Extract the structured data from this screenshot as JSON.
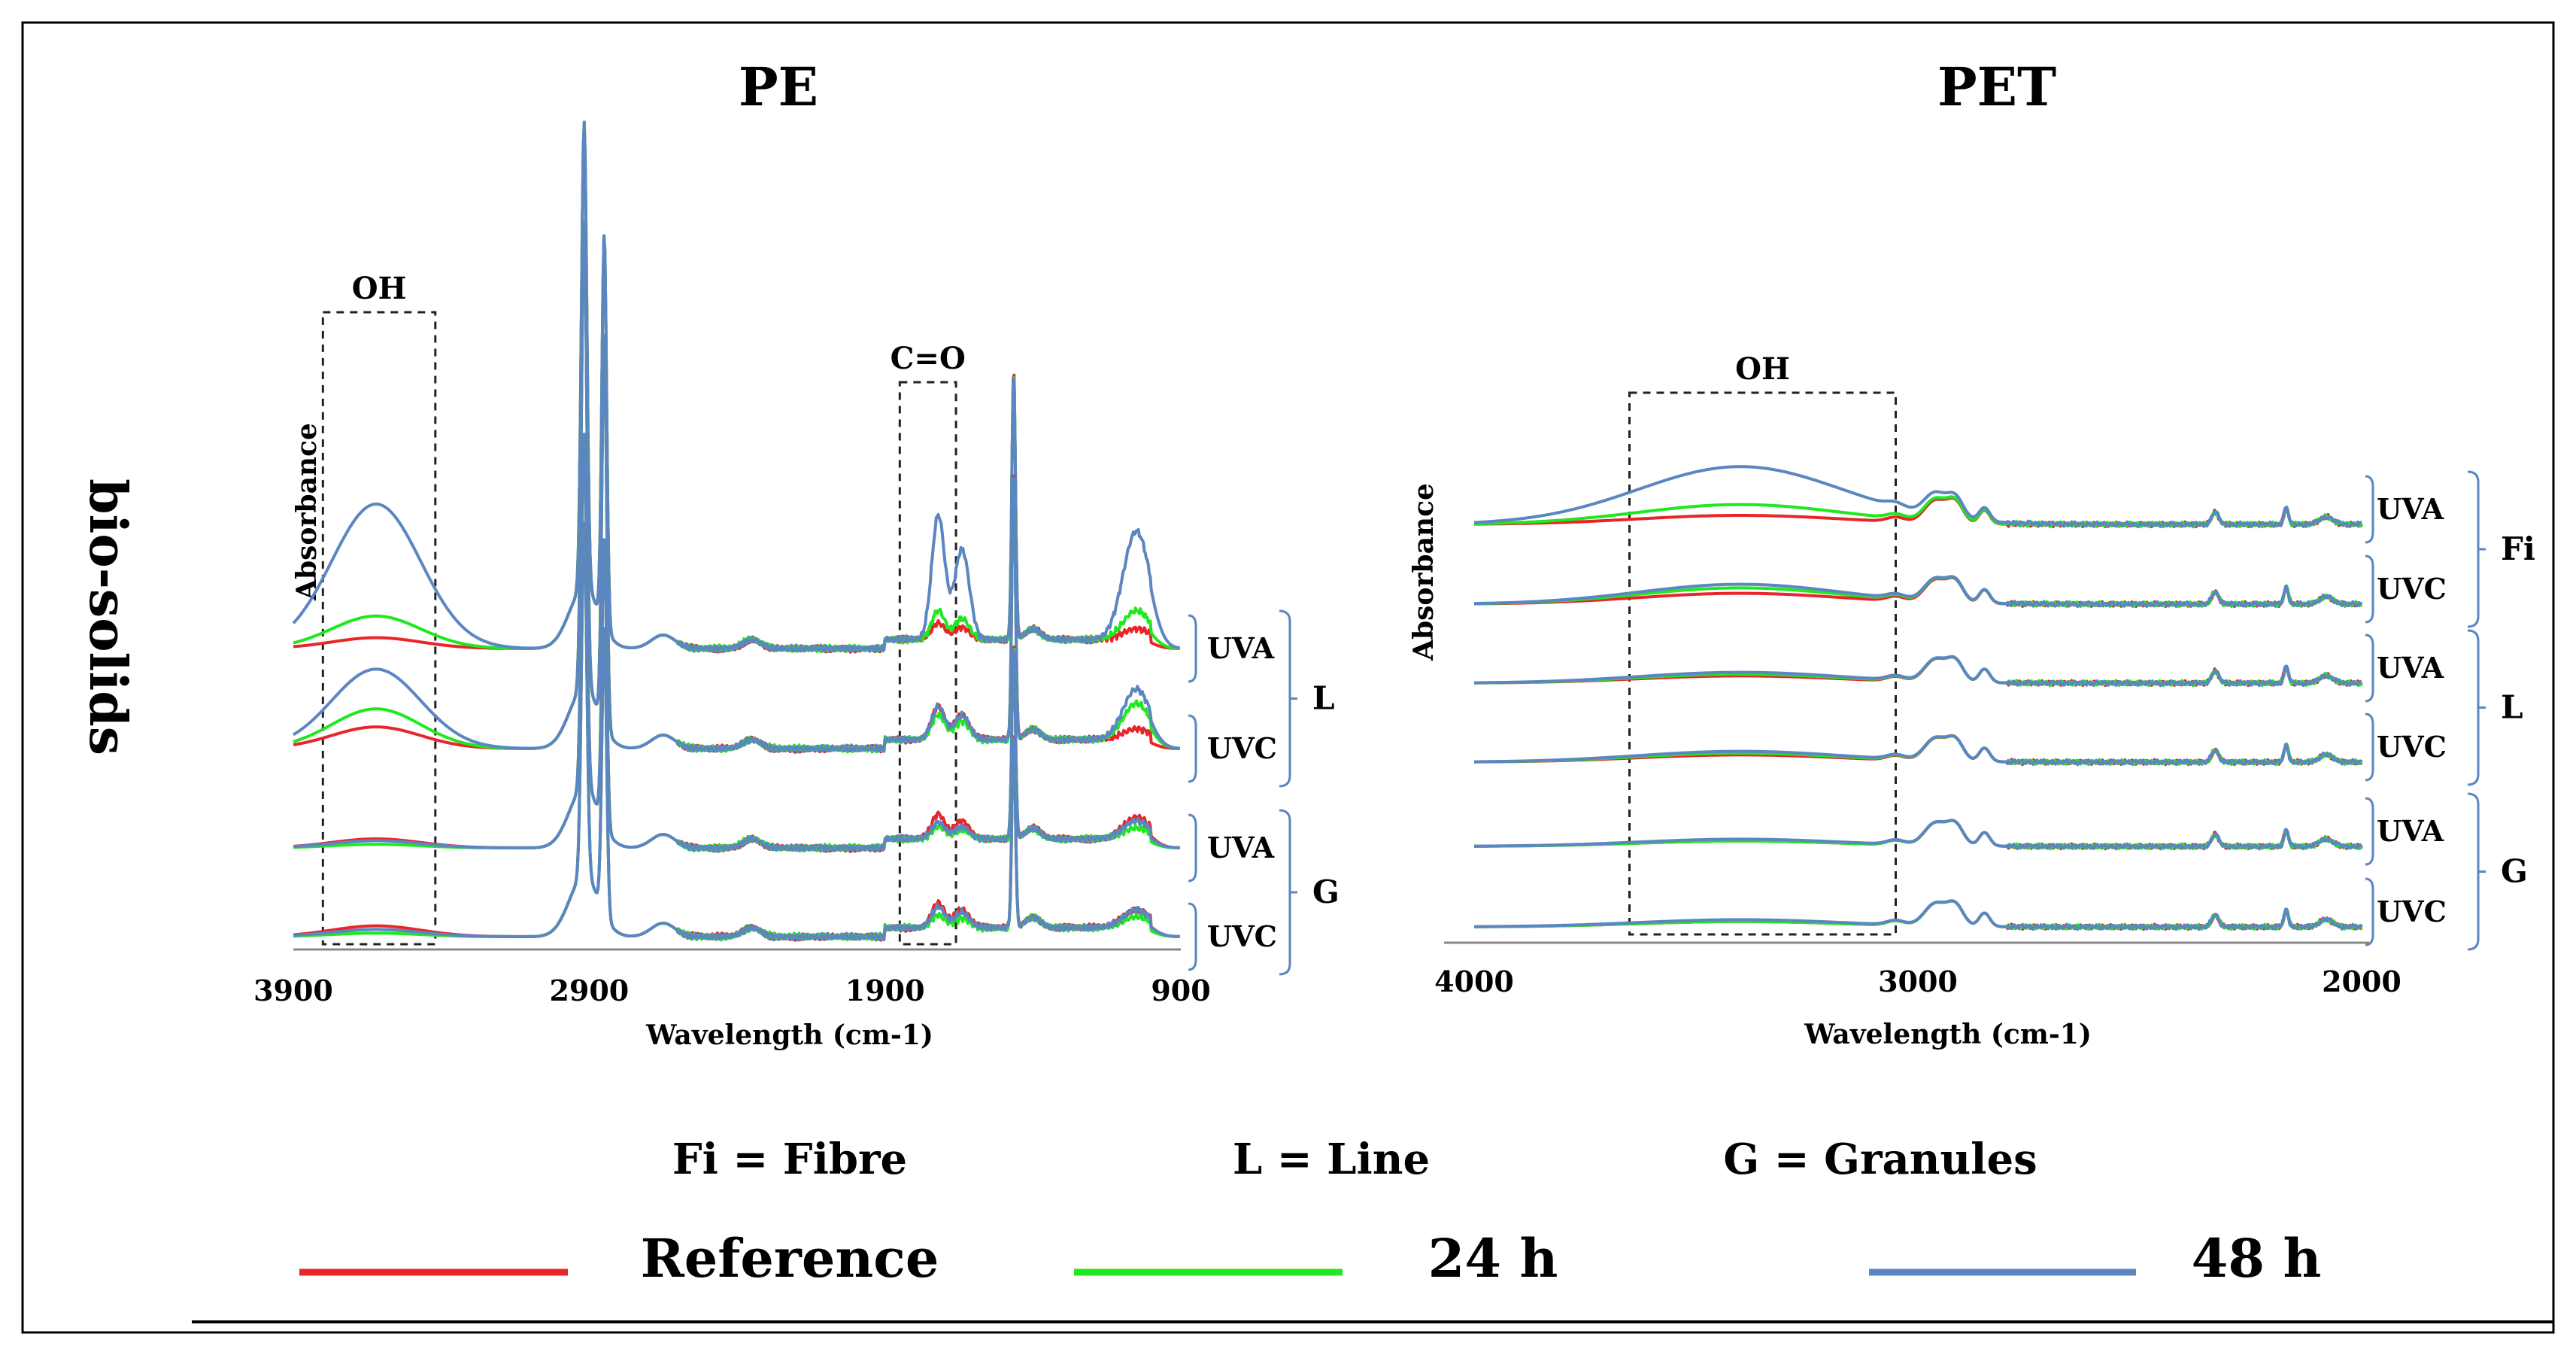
{
  "side_label": "bio-solids",
  "colors": {
    "reference": "#e8262a",
    "h24": "#1fe81f",
    "h48": "#5b86c2",
    "axis": "#888888",
    "bracket": "#5b86c2"
  },
  "legend_text": {
    "fi": "Fi = Fibre",
    "l": "L = Line",
    "g": "G = Granules",
    "reference": "Reference",
    "h24": "24 h",
    "h48": "48 h"
  },
  "chart_data": [
    {
      "type": "line",
      "title": "PE",
      "xlabel": "Wavelength (cm-1)",
      "ylabel": "Absorbance",
      "xlim": [
        3900,
        900
      ],
      "xticks": [
        3900,
        2900,
        1900,
        900
      ],
      "tick_labels": [
        "3900",
        "2900",
        "1900",
        "900"
      ],
      "annotations": [
        {
          "label": "OH",
          "x_range": [
            3800,
            3420
          ]
        },
        {
          "label": "C=O",
          "x_range": [
            1850,
            1660
          ]
        }
      ],
      "tracks": [
        {
          "label": "UVA",
          "group": "L",
          "scale": {
            "oh": [
              0.3,
              0.9,
              4.0
            ],
            "co": [
              0.4,
              0.7,
              3.0
            ],
            "band": [
              0.3,
              0.8,
              3.0
            ]
          }
        },
        {
          "label": "UVC",
          "group": "L",
          "scale": {
            "oh": [
              0.6,
              1.1,
              2.2
            ],
            "co": [
              0.8,
              0.6,
              0.8
            ],
            "band": [
              0.3,
              1.0,
              1.4
            ]
          }
        },
        {
          "label": "UVA",
          "group": "G",
          "scale": {
            "oh": [
              0.25,
              0.1,
              0.2
            ],
            "co": [
              0.6,
              0.3,
              0.4
            ],
            "band": [
              0.6,
              0.3,
              0.5
            ]
          }
        },
        {
          "label": "UVC",
          "group": "G",
          "scale": {
            "oh": [
              0.3,
              0.1,
              0.2
            ],
            "co": [
              0.6,
              0.3,
              0.5
            ],
            "band": [
              0.5,
              0.3,
              0.5
            ]
          }
        }
      ],
      "groups": [
        "L",
        "G"
      ],
      "series": [
        "Reference",
        "24 h",
        "48 h"
      ]
    },
    {
      "type": "line",
      "title": "PET",
      "xlabel": "Wavelength (cm-1)",
      "ylabel": "Absorbance",
      "xlim": [
        4000,
        2000
      ],
      "xticks": [
        4000,
        3000,
        2000
      ],
      "tick_labels": [
        "4000",
        "3000",
        "2000"
      ],
      "annotations": [
        {
          "label": "OH",
          "x_range": [
            3650,
            3050
          ]
        }
      ],
      "tracks": [
        {
          "label": "UVA",
          "group": "Fi",
          "scale": {
            "oh": [
              0.25,
              0.55,
              1.6
            ]
          }
        },
        {
          "label": "UVC",
          "group": "Fi",
          "scale": {
            "oh": [
              0.3,
              0.45,
              0.55
            ]
          }
        },
        {
          "label": "UVA",
          "group": "L",
          "scale": {
            "oh": [
              0.2,
              0.25,
              0.3
            ]
          }
        },
        {
          "label": "UVC",
          "group": "L",
          "scale": {
            "oh": [
              0.2,
              0.25,
              0.3
            ]
          }
        },
        {
          "label": "UVA",
          "group": "G",
          "scale": {
            "oh": [
              0.15,
              0.15,
              0.2
            ]
          }
        },
        {
          "label": "UVC",
          "group": "G",
          "scale": {
            "oh": [
              0.15,
              0.15,
              0.2
            ]
          }
        }
      ],
      "groups": [
        "Fi",
        "L",
        "G"
      ],
      "series": [
        "Reference",
        "24 h",
        "48 h"
      ]
    }
  ]
}
